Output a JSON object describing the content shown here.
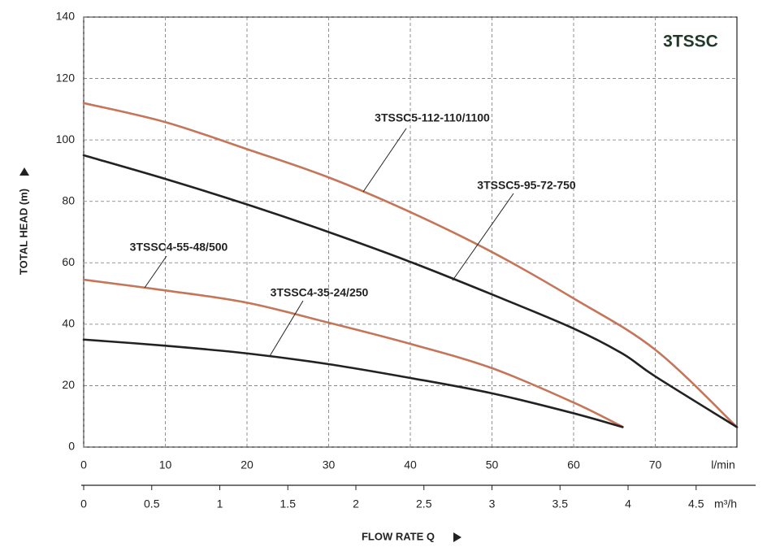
{
  "chart_data": {
    "type": "line",
    "title": "3TSSC",
    "x_label": "FLOW RATE Q",
    "y_label": "TOTAL HEAD (m)",
    "x_unit": "l/min",
    "x2_unit": "m³/h",
    "xlim": [
      0,
      80
    ],
    "xticks": [
      0,
      10,
      20,
      30,
      40,
      50,
      60,
      70
    ],
    "x2lim": [
      0,
      4.8
    ],
    "x2ticks": [
      0,
      0.5,
      1,
      1.5,
      2,
      2.5,
      3,
      3.5,
      4,
      4.5
    ],
    "ylim": [
      0,
      140
    ],
    "yticks": [
      0,
      20,
      40,
      60,
      80,
      100,
      120,
      140
    ],
    "grid": true,
    "series": [
      {
        "name": "3TSSC5-112-110/1100",
        "color": "#c4765a",
        "x": [
          0,
          10,
          20,
          30,
          40,
          50,
          60,
          70,
          80
        ],
        "values": [
          112,
          105.8,
          97,
          87.8,
          76.5,
          63.5,
          48.4,
          31.7,
          6.5
        ]
      },
      {
        "name": "3TSSC5-95-72-750",
        "color": "#222222",
        "x": [
          0,
          10,
          20,
          30,
          40,
          50,
          60,
          66,
          70,
          80
        ],
        "values": [
          95,
          87.3,
          79,
          70,
          60.3,
          49.7,
          38.6,
          30.4,
          23,
          6.5
        ]
      },
      {
        "name": "3TSSC4-55-48/500",
        "color": "#c4765a",
        "x": [
          0,
          10,
          20,
          30,
          40,
          50,
          60,
          66
        ],
        "values": [
          54.5,
          51,
          47,
          40.5,
          33.6,
          25.7,
          14.5,
          6.6
        ]
      },
      {
        "name": "3TSSC4-35-24/250",
        "color": "#222222",
        "x": [
          0,
          10,
          20,
          30,
          40,
          50,
          60,
          66
        ],
        "values": [
          35,
          33,
          30.5,
          27,
          22.5,
          17.5,
          11,
          6.5
        ]
      }
    ]
  }
}
